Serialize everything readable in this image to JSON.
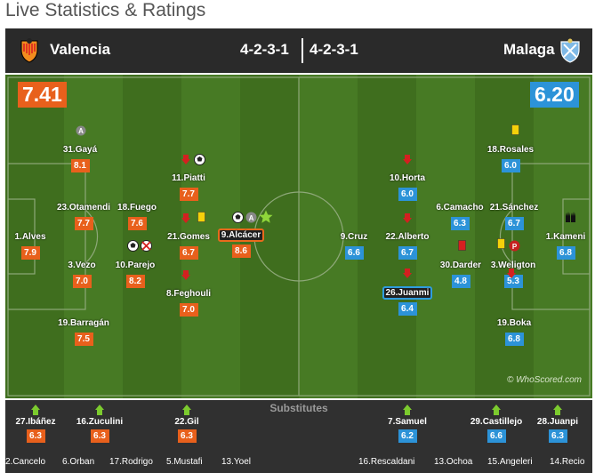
{
  "page_title": "Live Statistics & Ratings",
  "header": {
    "home_team": "Valencia",
    "away_team": "Malaga",
    "home_formation": "4-2-3-1",
    "away_formation": "4-2-3-1"
  },
  "ratings": {
    "home": "7.41",
    "away": "6.20"
  },
  "colors": {
    "home_rating": "#e8601c",
    "away_rating": "#2c93d8",
    "pitch": "#447522",
    "header": "#2a2a2a"
  },
  "home_players": [
    {
      "label": "31.Gayá",
      "rating": "8.1"
    },
    {
      "label": "11.Piatti",
      "rating": "7.7"
    },
    {
      "label": "23.Otamendi",
      "rating": "7.7"
    },
    {
      "label": "18.Fuego",
      "rating": "7.6"
    },
    {
      "label": "1.Alves",
      "rating": "7.9"
    },
    {
      "label": "21.Gomes",
      "rating": "6.7"
    },
    {
      "label": "9.Alcácer",
      "rating": "8.6"
    },
    {
      "label": "10.Parejo",
      "rating": "8.2"
    },
    {
      "label": "3.Vezo",
      "rating": "7.0"
    },
    {
      "label": "8.Feghouli",
      "rating": "7.0"
    },
    {
      "label": "19.Barragán",
      "rating": "7.5"
    }
  ],
  "away_players": [
    {
      "label": "18.Rosales",
      "rating": "6.0"
    },
    {
      "label": "10.Horta",
      "rating": "6.0"
    },
    {
      "label": "6.Camacho",
      "rating": "6.3"
    },
    {
      "label": "21.Sánchez",
      "rating": "6.7"
    },
    {
      "label": "9.Cruz",
      "rating": "6.6"
    },
    {
      "label": "22.Alberto",
      "rating": "6.7"
    },
    {
      "label": "1.Kameni",
      "rating": "6.8"
    },
    {
      "label": "30.Darder",
      "rating": "4.8"
    },
    {
      "label": "3.Weligton",
      "rating": "5.3"
    },
    {
      "label": "26.Juanmi",
      "rating": "6.4"
    },
    {
      "label": "19.Boka",
      "rating": "6.8"
    }
  ],
  "watermark": "© WhoScored.com",
  "substitutes": {
    "title": "Substitutes",
    "home": [
      {
        "label": "27.Ibáñez",
        "rating": "6.3"
      },
      {
        "label": "16.Zuculini",
        "rating": "6.3"
      },
      {
        "label": "22.Gil",
        "rating": "6.3"
      }
    ],
    "away": [
      {
        "label": "7.Samuel",
        "rating": "6.2"
      },
      {
        "label": "29.Castillejo",
        "rating": "6.6"
      },
      {
        "label": "28.Juanpi",
        "rating": "6.3"
      }
    ],
    "home_unused": [
      "2.Cancelo",
      "6.Orban",
      "17.Rodrigo",
      "5.Mustafi",
      "13.Yoel"
    ],
    "away_unused": [
      "16.Rescaldani",
      "13.Ochoa",
      "15.Angeleri",
      "14.Recio"
    ]
  }
}
